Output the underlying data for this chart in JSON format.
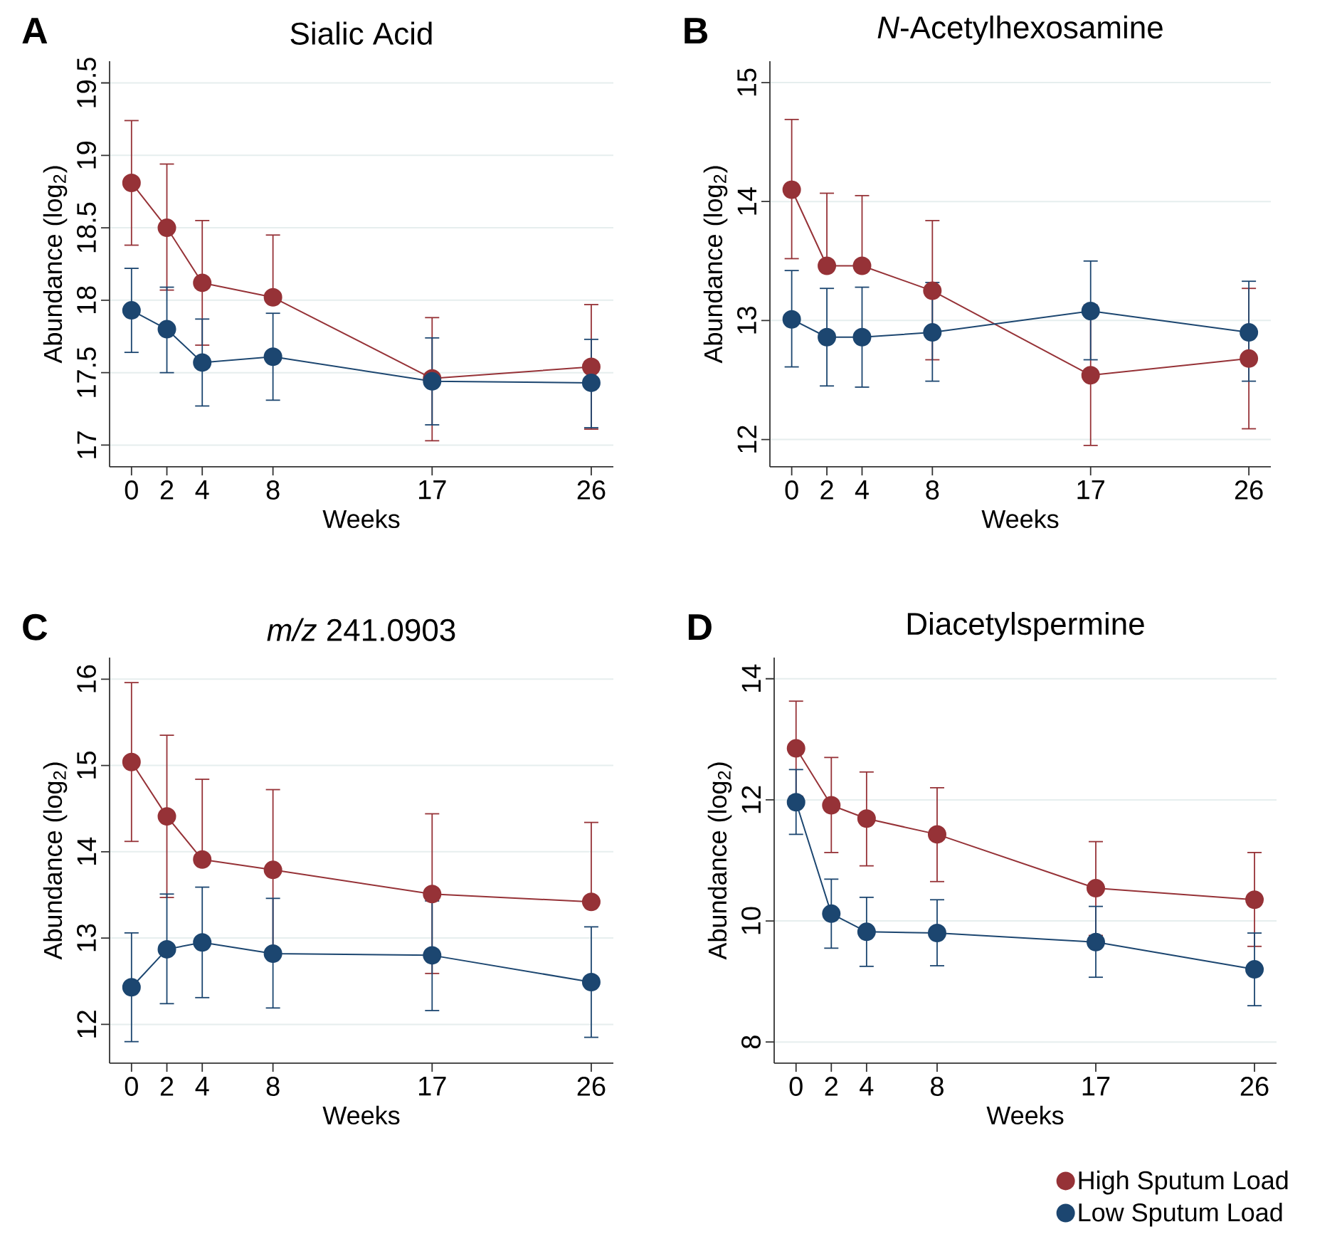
{
  "chart_data": [
    {
      "type": "line",
      "title": "Sialic Acid",
      "xlabel": "Weeks",
      "ylabel": "Abundance (log$_{2}$)",
      "annotations": [
        "A"
      ],
      "x": [
        0,
        2,
        4,
        8,
        17,
        26
      ],
      "xlim": [
        -1.24,
        27.25
      ],
      "xticks": [
        0,
        2,
        4,
        8,
        17,
        26
      ],
      "ylim": [
        16.85,
        19.65
      ],
      "yticks": [
        17,
        17.5,
        18,
        18.5,
        19,
        19.5
      ],
      "grid": "y",
      "marker": "circle",
      "series": [
        {
          "color": "#963237",
          "values": [
            18.81,
            18.5,
            18.12,
            18.02,
            17.46,
            17.54
          ],
          "errors": [
            [
              18.38,
              19.24
            ],
            [
              18.07,
              18.94
            ],
            [
              17.69,
              18.55
            ],
            [
              18.02,
              18.45
            ],
            [
              17.03,
              17.88
            ],
            [
              17.11,
              17.97
            ]
          ]
        },
        {
          "color": "#1c4670",
          "values": [
            17.93,
            17.8,
            17.57,
            17.61,
            17.44,
            17.43
          ],
          "errors": [
            [
              17.64,
              18.22
            ],
            [
              17.5,
              18.09
            ],
            [
              17.27,
              17.87
            ],
            [
              17.31,
              17.91
            ],
            [
              17.14,
              17.74
            ],
            [
              17.12,
              17.73
            ]
          ]
        }
      ]
    },
    {
      "type": "line",
      "title": "*N*-Acetylhexosamine",
      "xlabel": "Weeks",
      "ylabel": "Abundance (log$_{2}$)",
      "annotations": [
        "B"
      ],
      "x": [
        0,
        2,
        4,
        8,
        17,
        26
      ],
      "xlim": [
        -1.24,
        27.25
      ],
      "xticks": [
        0,
        2,
        4,
        8,
        17,
        26
      ],
      "ylim": [
        11.77,
        15.18
      ],
      "yticks": [
        12,
        13,
        14,
        15
      ],
      "grid": "y",
      "marker": "circle",
      "series": [
        {
          "color": "#963237",
          "values": [
            14.1,
            13.46,
            13.46,
            13.25,
            12.54,
            12.68
          ],
          "errors": [
            [
              13.52,
              14.69
            ],
            [
              13.46,
              14.07
            ],
            [
              13.46,
              14.05
            ],
            [
              12.67,
              13.84
            ],
            [
              11.95,
              13.13
            ],
            [
              12.09,
              13.27
            ]
          ]
        },
        {
          "color": "#1c4670",
          "values": [
            13.01,
            12.86,
            12.86,
            12.9,
            13.08,
            12.9
          ],
          "errors": [
            [
              12.61,
              13.42
            ],
            [
              12.45,
              13.27
            ],
            [
              12.44,
              13.28
            ],
            [
              12.49,
              13.32
            ],
            [
              12.67,
              13.5
            ],
            [
              12.49,
              13.33
            ]
          ]
        }
      ]
    },
    {
      "type": "line",
      "title": "*m/z* 241.0903",
      "xlabel": "Weeks",
      "ylabel": "Abundance (log$_{2}$)",
      "annotations": [
        "C"
      ],
      "x": [
        0,
        2,
        4,
        8,
        17,
        26
      ],
      "xlim": [
        -1.24,
        27.25
      ],
      "xticks": [
        0,
        2,
        4,
        8,
        17,
        26
      ],
      "ylim": [
        11.55,
        16.25
      ],
      "yticks": [
        12,
        13,
        14,
        15,
        16
      ],
      "grid": "y",
      "marker": "circle",
      "series": [
        {
          "color": "#963237",
          "values": [
            15.04,
            14.41,
            13.91,
            13.79,
            13.51,
            13.42
          ],
          "errors": [
            [
              14.12,
              15.96
            ],
            [
              13.47,
              15.35
            ],
            [
              13.91,
              14.84
            ],
            [
              12.87,
              14.72
            ],
            [
              12.59,
              14.44
            ],
            [
              13.42,
              14.34
            ]
          ]
        },
        {
          "color": "#1c4670",
          "values": [
            12.43,
            12.87,
            12.95,
            12.82,
            12.8,
            12.49
          ],
          "errors": [
            [
              11.8,
              13.06
            ],
            [
              12.24,
              13.51
            ],
            [
              12.31,
              13.59
            ],
            [
              12.19,
              13.46
            ],
            [
              12.16,
              13.43
            ],
            [
              11.85,
              13.13
            ]
          ]
        }
      ]
    },
    {
      "type": "line",
      "title": "Diacetylspermine",
      "xlabel": "Weeks",
      "ylabel": "Abundance (log$_{2}$)",
      "annotations": [
        "D"
      ],
      "x": [
        0,
        2,
        4,
        8,
        17,
        26
      ],
      "xlim": [
        -1.24,
        27.25
      ],
      "xticks": [
        0,
        2,
        4,
        8,
        17,
        26
      ],
      "ylim": [
        7.65,
        14.35
      ],
      "yticks": [
        8,
        10,
        12,
        14
      ],
      "grid": "y",
      "marker": "circle",
      "legend": "bottom right",
      "series": [
        {
          "name": "High Sputum Load",
          "color": "#963237",
          "values": [
            12.85,
            11.91,
            11.69,
            11.43,
            10.54,
            10.35
          ],
          "errors": [
            [
              12.06,
              13.63
            ],
            [
              11.13,
              12.7
            ],
            [
              10.91,
              12.46
            ],
            [
              10.65,
              12.2
            ],
            [
              9.76,
              11.31
            ],
            [
              9.58,
              11.13
            ]
          ]
        },
        {
          "name": "Low Sputum Load",
          "color": "#1c4670",
          "values": [
            11.96,
            10.12,
            9.82,
            9.8,
            9.65,
            9.2
          ],
          "errors": [
            [
              11.43,
              12.5
            ],
            [
              9.55,
              10.69
            ],
            [
              9.25,
              10.39
            ],
            [
              9.26,
              10.35
            ],
            [
              9.07,
              10.24
            ],
            [
              8.6,
              9.8
            ]
          ]
        }
      ]
    }
  ]
}
